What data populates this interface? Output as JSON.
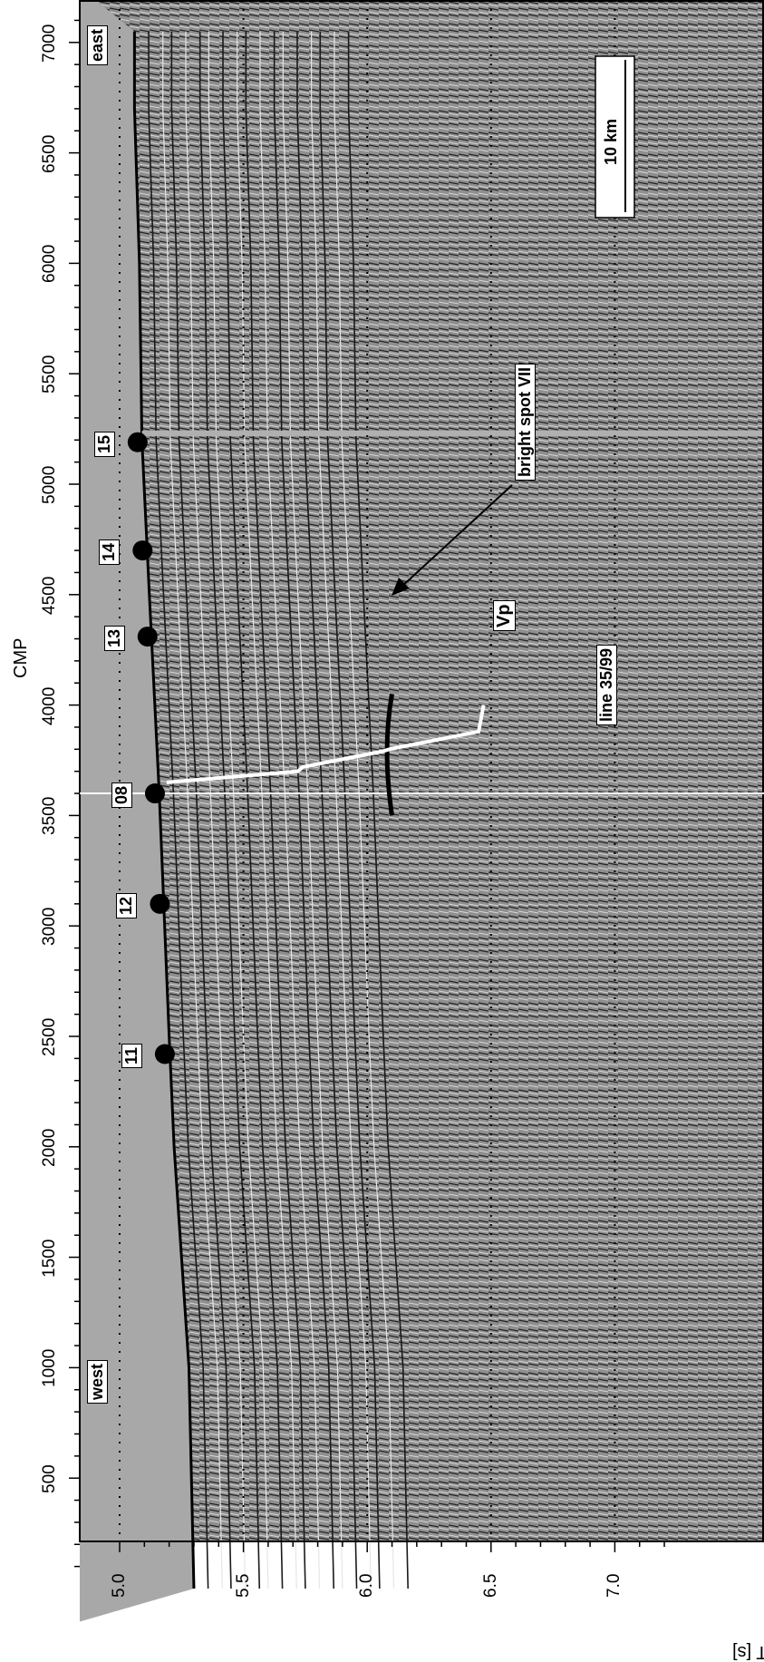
{
  "axes": {
    "x_label": "CMP",
    "x_ticks": [
      "500",
      "1000",
      "1500",
      "2000",
      "2500",
      "3000",
      "3500",
      "4000",
      "4500",
      "5000",
      "5500",
      "6000",
      "6500",
      "7000"
    ],
    "y_label": "TWT [s]",
    "y_ticks": [
      "5.0",
      "5.5",
      "6.0",
      "6.5",
      "7.0"
    ]
  },
  "annotations": {
    "west": "west",
    "east": "east",
    "line": "line 35/99",
    "bright_spot": "bright spot VII",
    "vp": "Vp",
    "scale": "10 km"
  },
  "stations": [
    {
      "id": "11",
      "cmp": 2420,
      "twt": 5.19
    },
    {
      "id": "12",
      "cmp": 3100,
      "twt": 5.17
    },
    {
      "id": "08",
      "cmp": 3600,
      "twt": 5.15
    },
    {
      "id": "13",
      "cmp": 4310,
      "twt": 5.12
    },
    {
      "id": "14",
      "cmp": 4700,
      "twt": 5.1
    },
    {
      "id": "15",
      "cmp": 5190,
      "twt": 5.08
    }
  ],
  "colors": {
    "water": "#a9a9a9",
    "data": "#8f8f8f",
    "line": "#ffffff"
  }
}
